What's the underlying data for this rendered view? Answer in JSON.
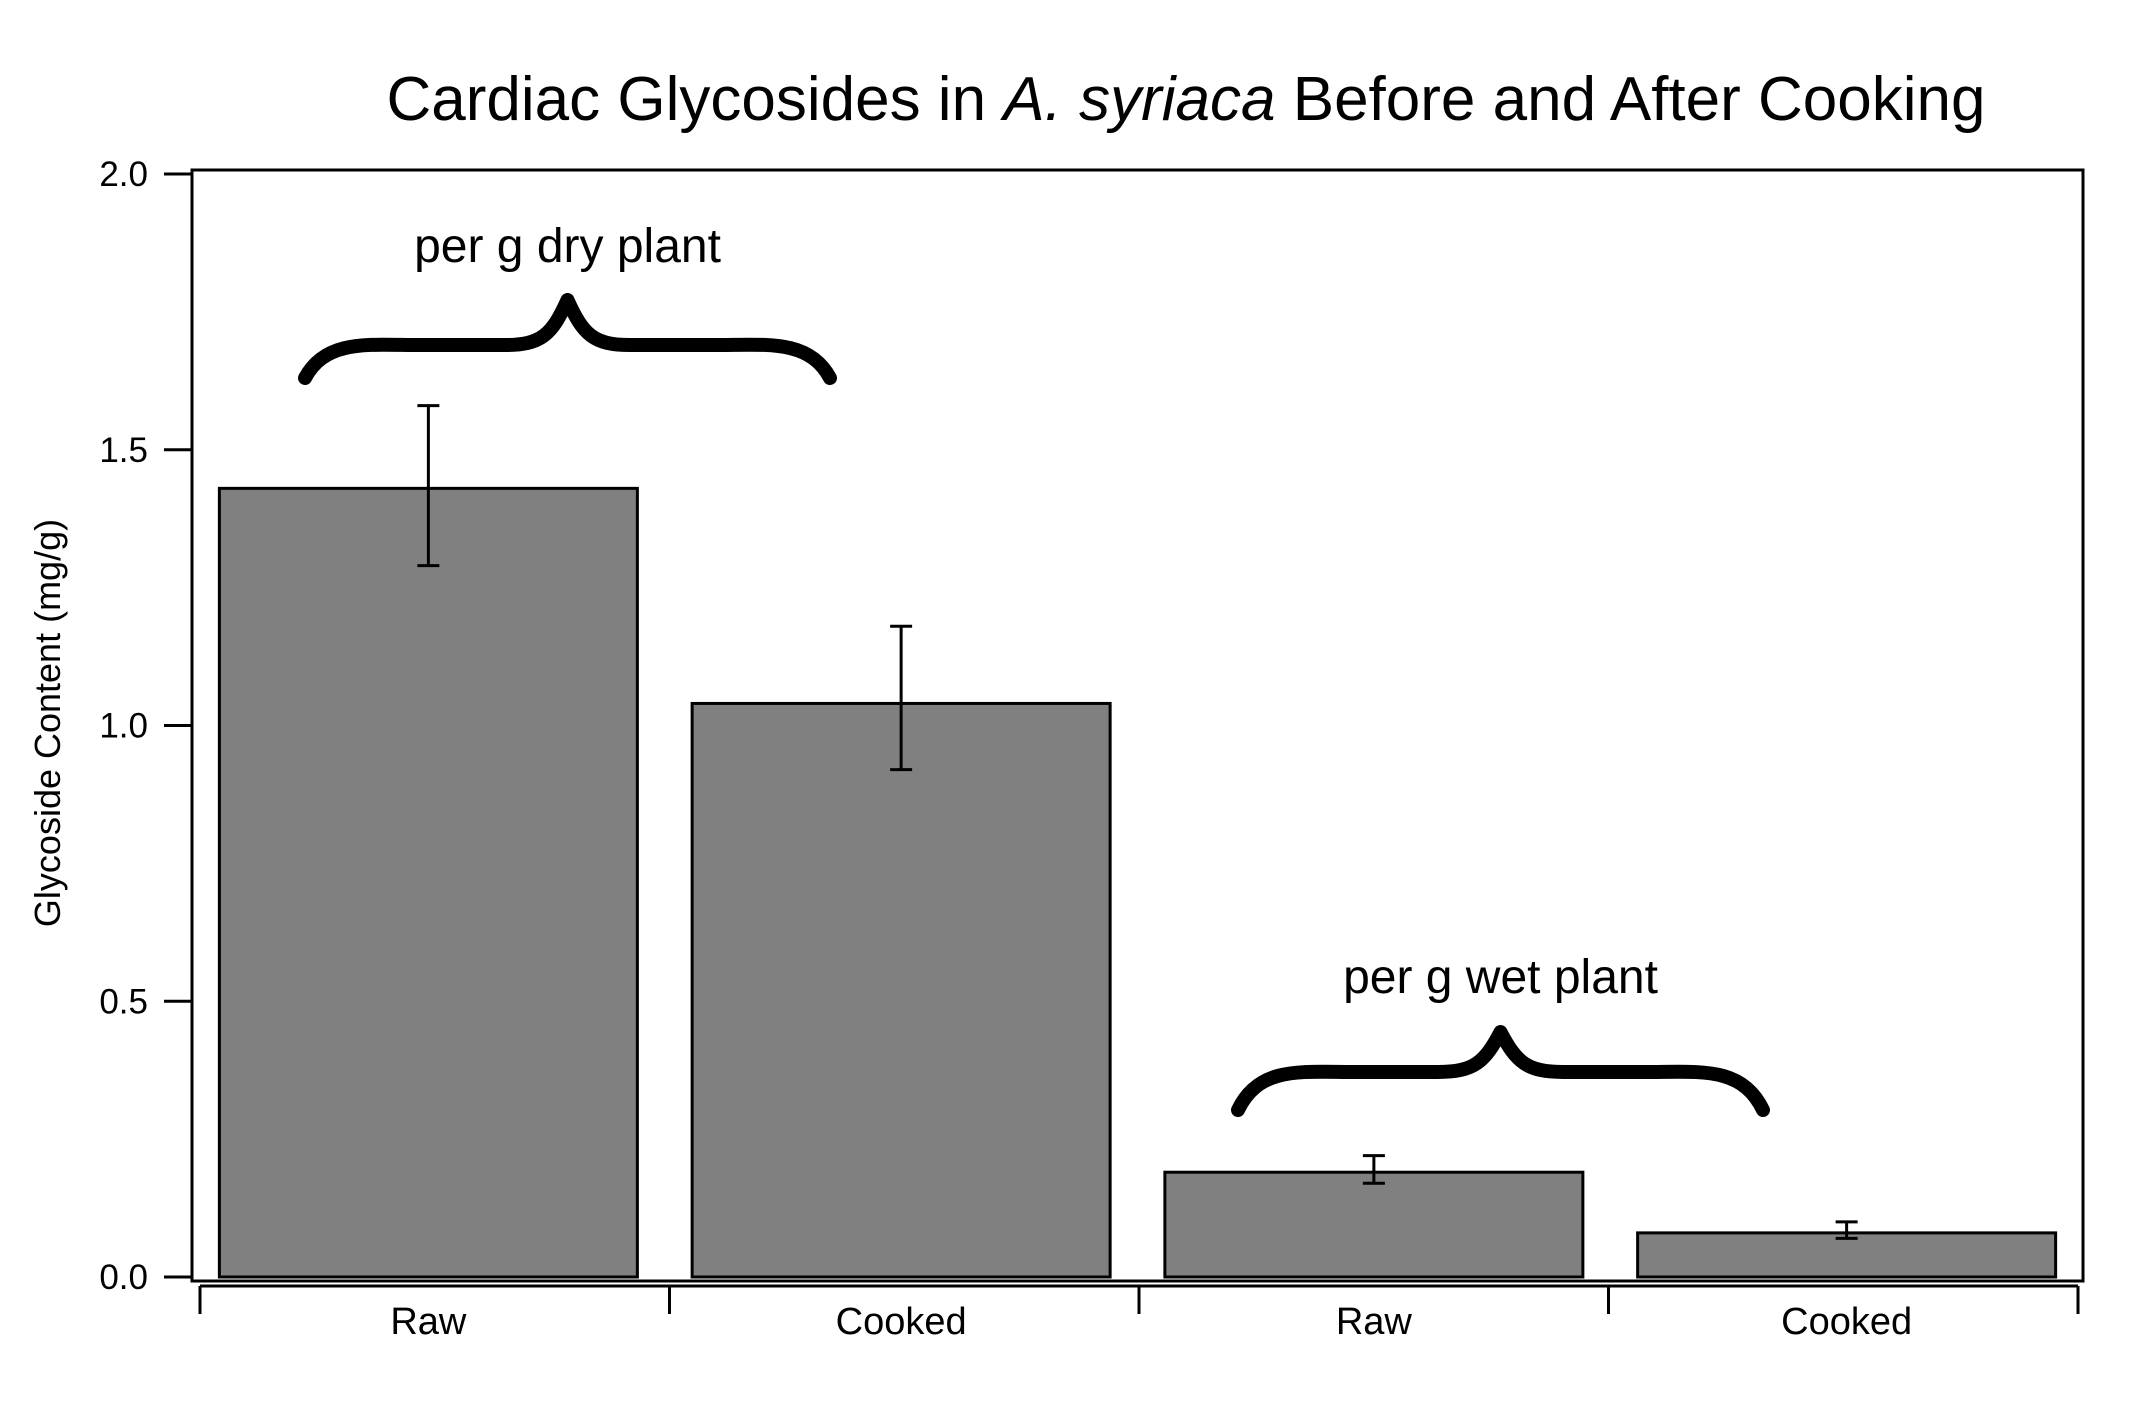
{
  "chart_data": {
    "type": "bar",
    "title": {
      "prefix": "Cardiac Glycosides in ",
      "italic": "A. syriaca",
      "suffix": " Before and After Cooking"
    },
    "xlabel": "",
    "ylabel": "Glycoside Content (mg/g)",
    "ylim": [
      0,
      2.0
    ],
    "yticks": [
      0.0,
      0.5,
      1.0,
      1.5,
      2.0
    ],
    "ytick_labels": [
      "0.0",
      "0.5",
      "1.0",
      "1.5",
      "2.0"
    ],
    "categories": [
      "Raw",
      "Cooked",
      "Raw",
      "Cooked"
    ],
    "values": [
      1.43,
      1.04,
      0.19,
      0.08
    ],
    "errors": [
      {
        "low": 1.29,
        "high": 1.58
      },
      {
        "low": 0.92,
        "high": 1.18
      },
      {
        "low": 0.17,
        "high": 0.22
      },
      {
        "low": 0.07,
        "high": 0.1
      }
    ],
    "bar_color": "#808080",
    "grid": false,
    "annotations": [
      {
        "text": "per g dry plant",
        "spans": [
          0,
          1
        ]
      },
      {
        "text": "per g wet plant",
        "spans": [
          2,
          3
        ]
      }
    ]
  }
}
